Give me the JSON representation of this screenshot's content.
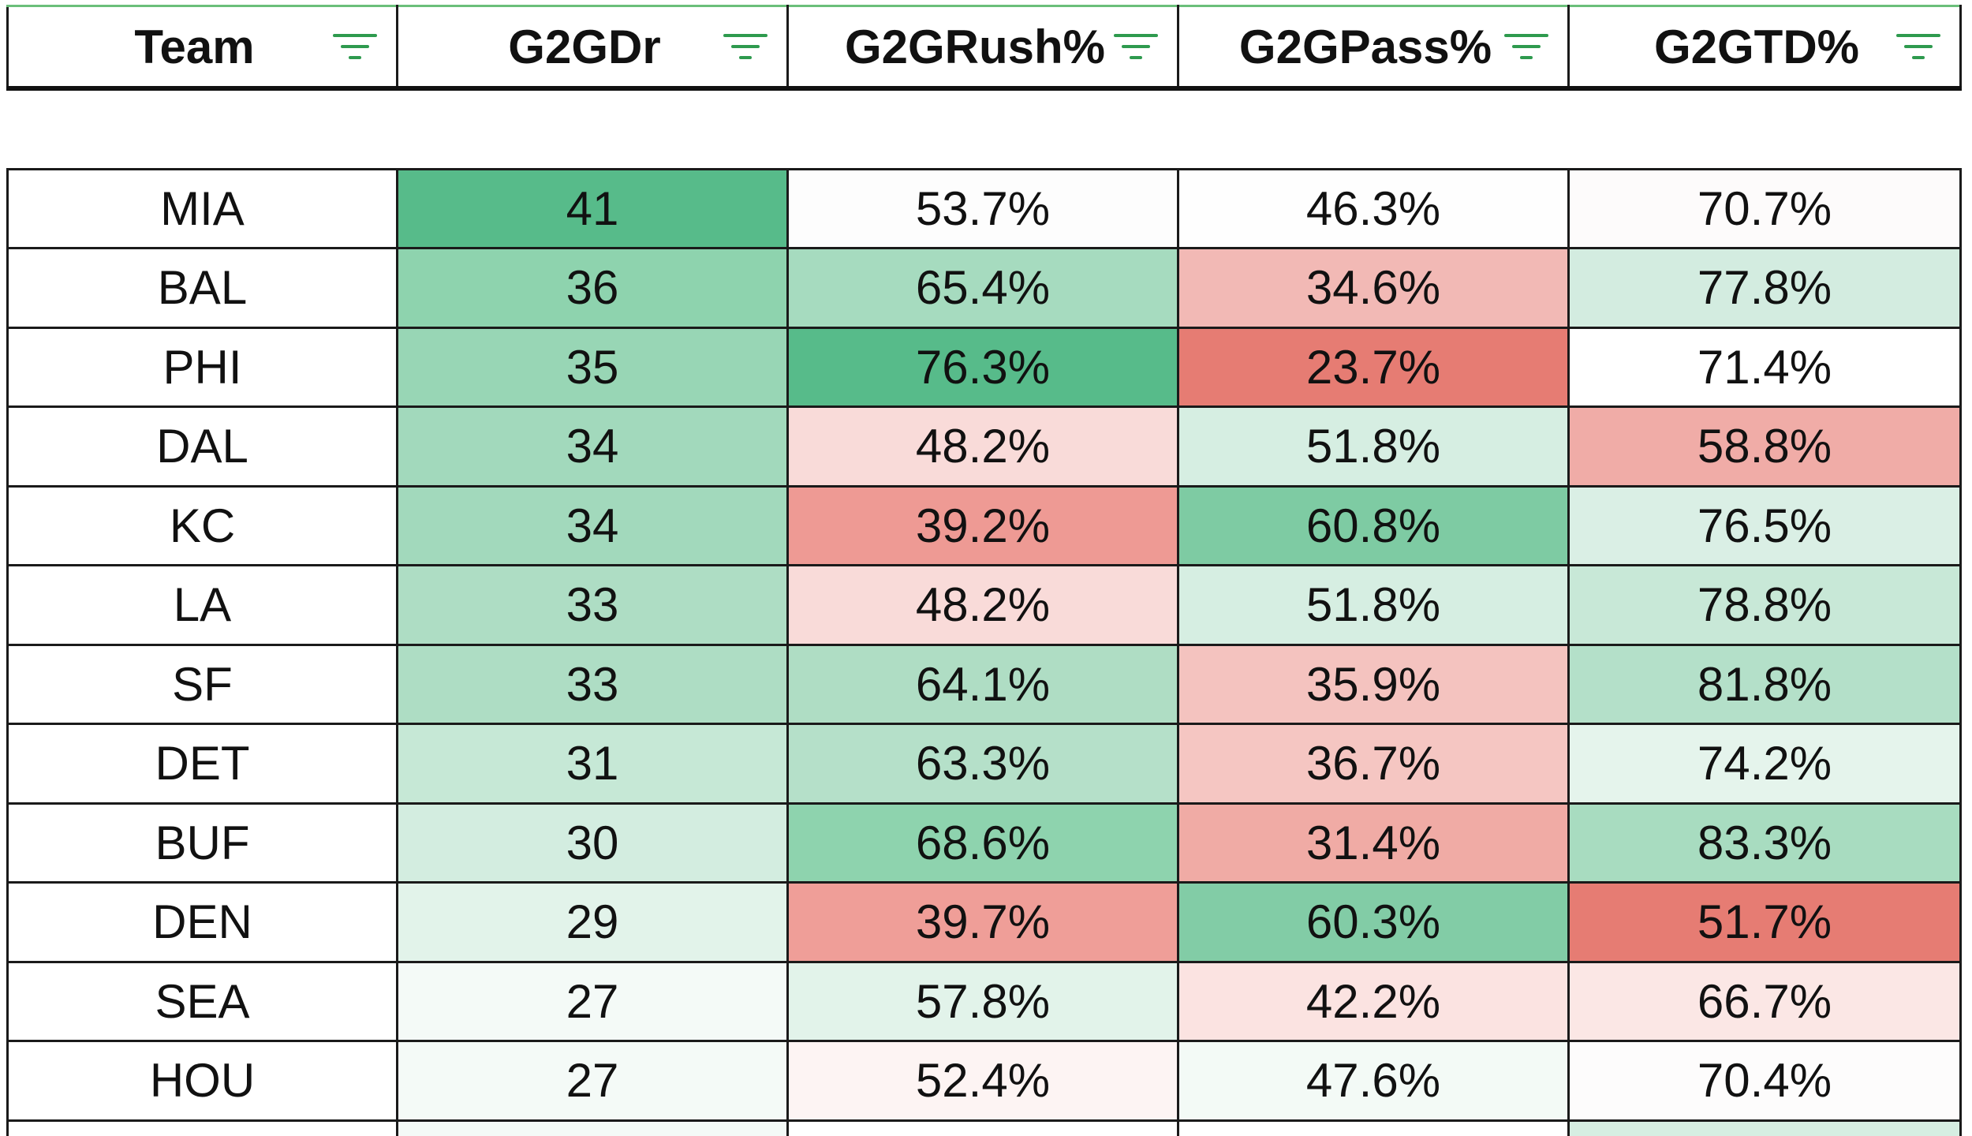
{
  "table": {
    "headers": [
      "Team",
      "G2GDr",
      "G2GRush%",
      "G2GPass%",
      "G2GTD%"
    ],
    "filter_icon": "filter-lines-icon",
    "filter_icon_color": "#2e9a4e",
    "rows": [
      {
        "team": "MIA",
        "g2gdr": "41",
        "rush": "53.7%",
        "pass": "46.3%",
        "td": "70.7%"
      },
      {
        "team": "BAL",
        "g2gdr": "36",
        "rush": "65.4%",
        "pass": "34.6%",
        "td": "77.8%"
      },
      {
        "team": "PHI",
        "g2gdr": "35",
        "rush": "76.3%",
        "pass": "23.7%",
        "td": "71.4%"
      },
      {
        "team": "DAL",
        "g2gdr": "34",
        "rush": "48.2%",
        "pass": "51.8%",
        "td": "58.8%"
      },
      {
        "team": "KC",
        "g2gdr": "34",
        "rush": "39.2%",
        "pass": "60.8%",
        "td": "76.5%"
      },
      {
        "team": "LA",
        "g2gdr": "33",
        "rush": "48.2%",
        "pass": "51.8%",
        "td": "78.8%"
      },
      {
        "team": "SF",
        "g2gdr": "33",
        "rush": "64.1%",
        "pass": "35.9%",
        "td": "81.8%"
      },
      {
        "team": "DET",
        "g2gdr": "31",
        "rush": "63.3%",
        "pass": "36.7%",
        "td": "74.2%"
      },
      {
        "team": "BUF",
        "g2gdr": "30",
        "rush": "68.6%",
        "pass": "31.4%",
        "td": "83.3%"
      },
      {
        "team": "DEN",
        "g2gdr": "29",
        "rush": "39.7%",
        "pass": "60.3%",
        "td": "51.7%"
      },
      {
        "team": "SEA",
        "g2gdr": "27",
        "rush": "57.8%",
        "pass": "42.2%",
        "td": "66.7%"
      },
      {
        "team": "HOU",
        "g2gdr": "27",
        "rush": "52.4%",
        "pass": "47.6%",
        "td": "70.4%"
      }
    ],
    "cell_colors": [
      [
        "#ffffff",
        "#57bb8a",
        "#fdfdfd",
        "#fefefe",
        "#fdfbfb"
      ],
      [
        "#ffffff",
        "#8ed3ae",
        "#a6dbbf",
        "#f2b9b5",
        "#d3ece0"
      ],
      [
        "#ffffff",
        "#98d6b5",
        "#57bb8a",
        "#e67c73",
        "#ffffff"
      ],
      [
        "#ffffff",
        "#a2d9bc",
        "#f9dbd9",
        "#d6eee2",
        "#f0aca7"
      ],
      [
        "#ffffff",
        "#a2d9bc",
        "#ee9a94",
        "#7ecba3",
        "#daefe5"
      ],
      [
        "#ffffff",
        "#aeddc4",
        "#f9dbd9",
        "#d6eee2",
        "#c8e8d7"
      ],
      [
        "#ffffff",
        "#aeddc4",
        "#afddc4",
        "#f4c3bf",
        "#b4e0c9"
      ],
      [
        "#ffffff",
        "#c6e8d6",
        "#b5e0c9",
        "#f5c6c2",
        "#e5f4ec"
      ],
      [
        "#ffffff",
        "#d3ede0",
        "#8ed3ae",
        "#f0aba5",
        "#a8dcc0"
      ],
      [
        "#ffffff",
        "#e2f3ea",
        "#ef9e98",
        "#82cca6",
        "#e67c73"
      ],
      [
        "#ffffff",
        "#f4faf7",
        "#e2f3ea",
        "#fbe3e1",
        "#fbe7e5"
      ],
      [
        "#ffffff",
        "#f4faf7",
        "#fdf4f3",
        "#f3faf6",
        "#fdfcfc"
      ]
    ],
    "partial_row_colors": [
      "#ffffff",
      "#f4faf7",
      "#ffffff",
      "#ffffff",
      "#d6eee2"
    ]
  }
}
